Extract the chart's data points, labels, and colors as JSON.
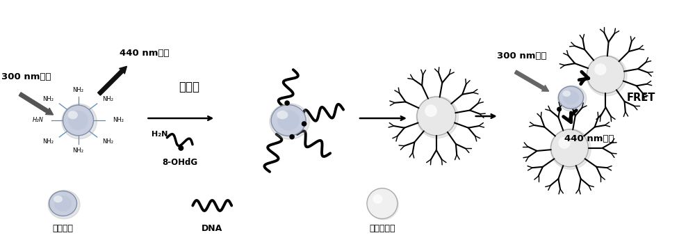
{
  "bg_color": "#ffffff",
  "arm_color": "#5588bb",
  "label_cqd": "础量子点",
  "label_dna": "DNA",
  "label_gold": "金纳米颗粒",
  "label_300_1": "300 nm激发",
  "label_440_1": "440 nm发射",
  "label_glutaraldehyde": "戊二醒",
  "label_8ohdg": "8-OHdG",
  "label_h2n_1": "H₂N",
  "label_300_2": "300 nm激发",
  "label_440_2": "440 nm发射",
  "label_fret": "FRET",
  "figsize": [
    10.0,
    3.45
  ],
  "dpi": 100
}
